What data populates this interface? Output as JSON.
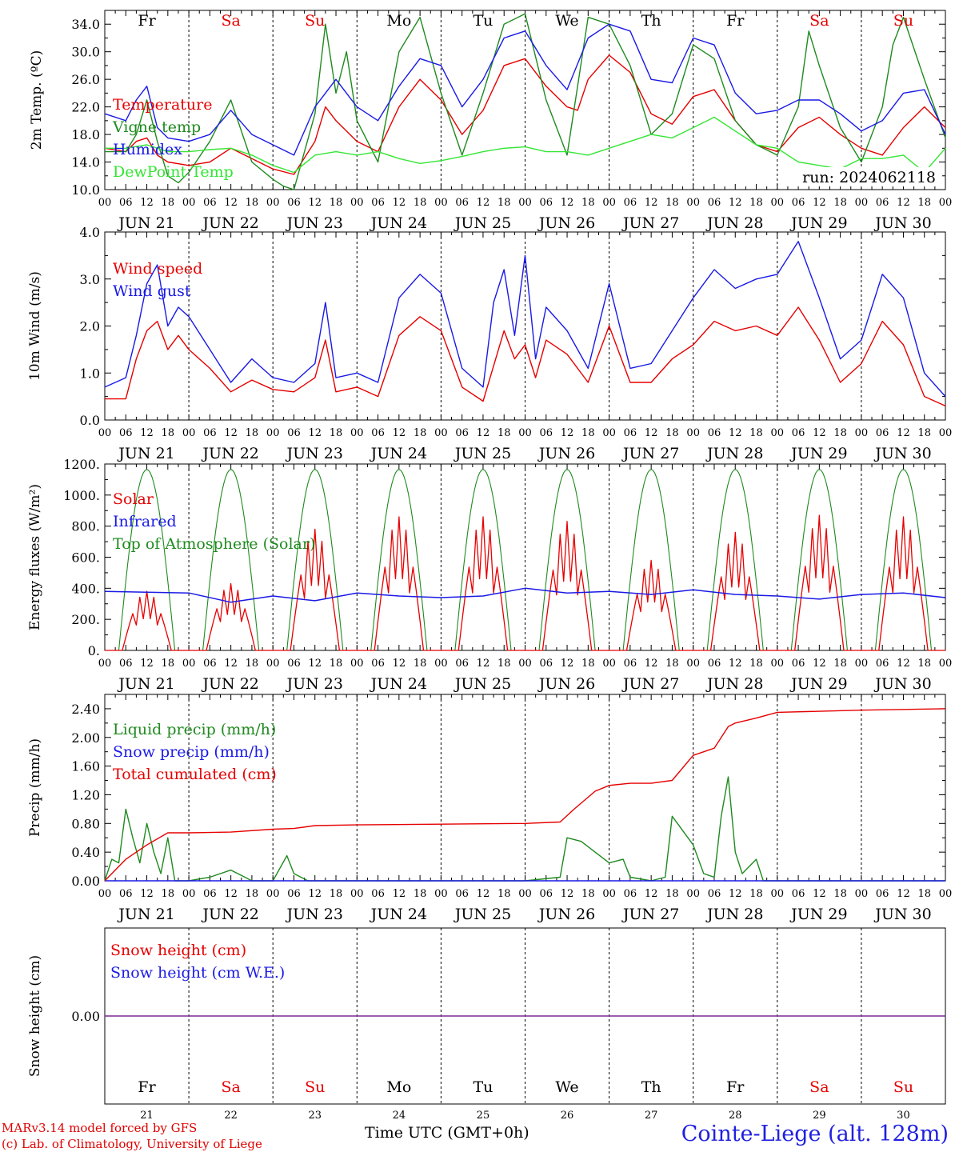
{
  "colors": {
    "red": "#e60000",
    "darkgreen": "#1f8a1f",
    "blue": "#1a1ae6",
    "lightgreen": "#33e633",
    "purple": "#7a2a9a",
    "weekend": "#e60000",
    "weekday": "#000000"
  },
  "days": {
    "names": [
      "Fr",
      "Sa",
      "Su",
      "Mo",
      "Tu",
      "We",
      "Th",
      "Fr",
      "Sa",
      "Su"
    ],
    "weekend": [
      false,
      true,
      true,
      false,
      false,
      false,
      false,
      false,
      true,
      true
    ],
    "dates": [
      "JUN 21",
      "JUN 22",
      "JUN 23",
      "JUN 24",
      "JUN 25",
      "JUN 26",
      "JUN 27",
      "JUN 28",
      "JUN 29",
      "JUN 30"
    ],
    "numbers": [
      "21",
      "22",
      "23",
      "24",
      "25",
      "26",
      "27",
      "28",
      "29",
      "30"
    ],
    "hour_ticks": [
      "00",
      "06",
      "12",
      "18"
    ],
    "end_tick": "00"
  },
  "footer": {
    "model": "MARv3.14 model forced by GFS",
    "lab": "(c) Lab. of Climatology, University of Liege",
    "time_label": "Time UTC (GMT+0h)",
    "station": "Cointe-Liege (alt. 128m)"
  },
  "chart_data": [
    {
      "type": "line",
      "ylabel": "2m Temp. (ºC)",
      "ylim": [
        10,
        36
      ],
      "yticks": [
        "10.0",
        "14.0",
        "18.0",
        "22.0",
        "26.0",
        "30.0",
        "34.0"
      ],
      "annotation": "run: 2024062118",
      "x_unit": "hours since JUN 21 00 UTC",
      "series": [
        {
          "name": "Temperature",
          "color": "red",
          "x": [
            0,
            6,
            9,
            12,
            15,
            18,
            24,
            30,
            36,
            42,
            48,
            54,
            60,
            63,
            66,
            72,
            78,
            84,
            90,
            96,
            102,
            108,
            114,
            120,
            126,
            132,
            135,
            138,
            144,
            150,
            156,
            162,
            168,
            174,
            180,
            186,
            192,
            198,
            204,
            210,
            216,
            222,
            228,
            234,
            240
          ],
          "y": [
            16,
            15.5,
            17,
            17.5,
            15,
            14,
            13.5,
            14,
            16,
            14.5,
            13,
            12.2,
            17,
            22,
            20,
            17,
            15.5,
            22,
            26,
            23,
            18,
            21.5,
            28,
            29,
            25,
            22,
            21.5,
            26,
            29.5,
            27,
            21,
            19.5,
            23.5,
            24.5,
            20,
            16.5,
            15.5,
            19,
            20.5,
            18,
            16,
            15,
            19,
            22,
            19
          ]
        },
        {
          "name": "Vigne temp",
          "color": "darkgreen",
          "x": [
            0,
            6,
            9,
            12,
            15,
            18,
            21,
            24,
            30,
            36,
            42,
            48,
            51,
            54,
            60,
            63,
            66,
            69,
            72,
            78,
            84,
            90,
            96,
            102,
            108,
            114,
            120,
            126,
            132,
            138,
            144,
            150,
            156,
            162,
            168,
            174,
            180,
            186,
            192,
            198,
            201,
            204,
            210,
            216,
            222,
            225,
            228,
            234,
            240
          ],
          "y": [
            15.5,
            15.5,
            18,
            23,
            17,
            12,
            11,
            12.5,
            17,
            23,
            14,
            11.5,
            10.5,
            10,
            21,
            34,
            24,
            30,
            20,
            14,
            30,
            35,
            24,
            15,
            24,
            34,
            35.5,
            23,
            15,
            35,
            34,
            28,
            18,
            21,
            31,
            29,
            20,
            16.5,
            15,
            22,
            33,
            28,
            19,
            14,
            22,
            31,
            35,
            26,
            17.5
          ]
        },
        {
          "name": "Humidex",
          "color": "blue",
          "x": [
            0,
            6,
            9,
            12,
            15,
            18,
            24,
            30,
            36,
            42,
            48,
            54,
            60,
            66,
            72,
            78,
            84,
            90,
            96,
            102,
            108,
            114,
            120,
            126,
            132,
            138,
            144,
            150,
            156,
            162,
            168,
            174,
            180,
            186,
            192,
            198,
            204,
            210,
            216,
            222,
            228,
            234,
            240
          ],
          "y": [
            21,
            20,
            23,
            25,
            19,
            17.5,
            17,
            18,
            21.5,
            18,
            16.5,
            15,
            22,
            26,
            22,
            20,
            25,
            29,
            28,
            22,
            26,
            32,
            33,
            28,
            24.5,
            32,
            34,
            33,
            26,
            25.5,
            32,
            31,
            24,
            21,
            21.5,
            23,
            23,
            21,
            18.5,
            20,
            24,
            24.5,
            18
          ]
        },
        {
          "name": "DewPoint Temp",
          "color": "lightgreen",
          "x": [
            0,
            6,
            12,
            18,
            24,
            30,
            36,
            42,
            48,
            54,
            60,
            66,
            72,
            78,
            84,
            90,
            96,
            102,
            108,
            114,
            120,
            126,
            132,
            138,
            144,
            150,
            156,
            162,
            168,
            174,
            180,
            186,
            192,
            198,
            204,
            210,
            216,
            222,
            228,
            234,
            240
          ],
          "y": [
            16,
            16,
            16.5,
            15.5,
            15.5,
            15.8,
            16,
            15,
            13.5,
            12.5,
            15,
            15.5,
            15,
            15.5,
            14.5,
            13.8,
            14.2,
            14.8,
            15.5,
            16,
            16.2,
            15.5,
            15.5,
            15,
            16,
            17,
            18,
            17.5,
            19,
            20.5,
            18.5,
            16.5,
            16,
            14,
            13.5,
            13,
            14.5,
            14.5,
            15,
            12.5,
            16
          ]
        }
      ]
    },
    {
      "type": "line",
      "ylabel": "10m Wind (m/s)",
      "ylim": [
        0,
        4
      ],
      "yticks": [
        "0.0",
        "1.0",
        "2.0",
        "3.0",
        "4.0"
      ],
      "series": [
        {
          "name": "Wind speed",
          "color": "red",
          "x": [
            0,
            6,
            9,
            12,
            15,
            18,
            21,
            24,
            30,
            36,
            42,
            48,
            54,
            60,
            63,
            66,
            72,
            78,
            84,
            90,
            96,
            102,
            108,
            114,
            117,
            120,
            123,
            126,
            132,
            138,
            144,
            150,
            156,
            162,
            168,
            174,
            180,
            186,
            192,
            198,
            204,
            210,
            216,
            222,
            228,
            234,
            240
          ],
          "y": [
            0.45,
            0.45,
            1.3,
            1.9,
            2.1,
            1.5,
            1.8,
            1.5,
            1.1,
            0.6,
            0.85,
            0.65,
            0.6,
            0.9,
            1.7,
            0.6,
            0.7,
            0.5,
            1.8,
            2.2,
            1.9,
            0.7,
            0.4,
            1.9,
            1.3,
            1.6,
            0.9,
            1.7,
            1.4,
            0.8,
            2.0,
            0.8,
            0.8,
            1.3,
            1.6,
            2.1,
            1.9,
            2.0,
            1.8,
            2.4,
            1.7,
            0.8,
            1.2,
            2.1,
            1.6,
            0.5,
            0.3
          ]
        },
        {
          "name": "Wind gust",
          "color": "blue",
          "x": [
            0,
            6,
            9,
            12,
            15,
            18,
            21,
            24,
            30,
            36,
            42,
            48,
            54,
            60,
            63,
            66,
            72,
            78,
            84,
            90,
            96,
            102,
            108,
            111,
            114,
            117,
            120,
            123,
            126,
            132,
            138,
            144,
            150,
            156,
            162,
            168,
            174,
            180,
            186,
            192,
            198,
            204,
            210,
            216,
            222,
            228,
            234,
            240
          ],
          "y": [
            0.7,
            0.9,
            1.8,
            2.9,
            3.3,
            2.0,
            2.4,
            2.2,
            1.5,
            0.8,
            1.3,
            0.9,
            0.8,
            1.2,
            2.5,
            0.9,
            1.0,
            0.8,
            2.6,
            3.1,
            2.7,
            1.1,
            0.7,
            2.5,
            3.2,
            1.8,
            3.5,
            1.3,
            2.4,
            1.9,
            1.1,
            2.9,
            1.1,
            1.2,
            1.9,
            2.6,
            3.2,
            2.8,
            3.0,
            3.1,
            3.8,
            2.6,
            1.3,
            1.7,
            3.1,
            2.6,
            1.0,
            0.5
          ]
        }
      ]
    },
    {
      "type": "line",
      "ylabel": "Energy fluxes (W/m²)",
      "ylim": [
        0,
        1200
      ],
      "yticks": [
        "0.",
        "200.",
        "400.",
        "600.",
        "800.",
        "1000.",
        "1200."
      ],
      "series": [
        {
          "name": "Solar",
          "color": "red",
          "day_peaks": [
            380,
            430,
            780,
            860,
            860,
            830,
            580,
            760,
            870,
            860
          ]
        },
        {
          "name": "Infrared",
          "color": "blue",
          "x": [
            0,
            24,
            36,
            48,
            60,
            72,
            84,
            96,
            108,
            120,
            132,
            144,
            156,
            168,
            180,
            192,
            204,
            216,
            228,
            240
          ],
          "y": [
            380,
            370,
            310,
            350,
            320,
            370,
            350,
            340,
            350,
            400,
            370,
            380,
            360,
            390,
            360,
            350,
            330,
            360,
            370,
            340
          ]
        },
        {
          "name": "Top of Atmosphere (Solar)",
          "color": "darkgreen",
          "peak": 1165,
          "rise_hour": 4,
          "set_hour": 20
        }
      ]
    },
    {
      "type": "line",
      "ylabel": "Precip (mm/h)",
      "ylim": [
        0,
        2.6
      ],
      "yticks": [
        "0.00",
        "0.40",
        "0.80",
        "1.20",
        "1.60",
        "2.00",
        "2.40"
      ],
      "series": [
        {
          "name": "Liquid precip (mm/h)",
          "color": "darkgreen",
          "x": [
            0,
            2,
            4,
            6,
            8,
            10,
            12,
            14,
            16,
            18,
            20,
            24,
            30,
            36,
            40,
            42,
            48,
            52,
            54,
            58,
            60,
            72,
            96,
            120,
            130,
            132,
            136,
            140,
            144,
            148,
            150,
            156,
            160,
            162,
            165,
            168,
            171,
            174,
            176,
            178,
            180,
            182,
            186,
            188,
            192,
            200,
            240
          ],
          "y": [
            0,
            0.3,
            0.25,
            1.0,
            0.6,
            0.25,
            0.8,
            0.4,
            0.1,
            0.6,
            0,
            0,
            0.05,
            0.15,
            0.05,
            0,
            0,
            0.35,
            0.1,
            0,
            0,
            0,
            0,
            0,
            0.05,
            0.6,
            0.55,
            0.4,
            0.25,
            0.3,
            0.05,
            0,
            0.05,
            0.9,
            0.7,
            0.5,
            0.1,
            0.05,
            0.9,
            1.45,
            0.4,
            0.1,
            0.3,
            0,
            0,
            0,
            0
          ]
        },
        {
          "name": "Snow precip (mm/h)",
          "color": "blue",
          "x": [
            0,
            240
          ],
          "y": [
            0,
            0
          ]
        },
        {
          "name": "Total cumulated (cm)",
          "color": "red",
          "x": [
            0,
            6,
            12,
            18,
            24,
            36,
            48,
            54,
            60,
            72,
            96,
            120,
            130,
            134,
            140,
            144,
            150,
            156,
            162,
            168,
            174,
            178,
            180,
            186,
            192,
            216,
            240
          ],
          "y": [
            0,
            0.3,
            0.5,
            0.67,
            0.67,
            0.68,
            0.72,
            0.73,
            0.77,
            0.78,
            0.79,
            0.8,
            0.82,
            1.0,
            1.25,
            1.33,
            1.36,
            1.36,
            1.4,
            1.75,
            1.85,
            2.15,
            2.2,
            2.27,
            2.35,
            2.38,
            2.4
          ]
        }
      ]
    },
    {
      "type": "line",
      "ylabel": "Snow height (cm)",
      "yticks": [
        "0.00"
      ],
      "series": [
        {
          "name": "Snow height (cm)",
          "color": "red",
          "x": [
            0,
            240
          ],
          "y": [
            0,
            0
          ]
        },
        {
          "name": "Snow height (cm W.E.)",
          "color": "blue",
          "x": [
            0,
            240
          ],
          "y": [
            0,
            0
          ]
        }
      ]
    }
  ]
}
